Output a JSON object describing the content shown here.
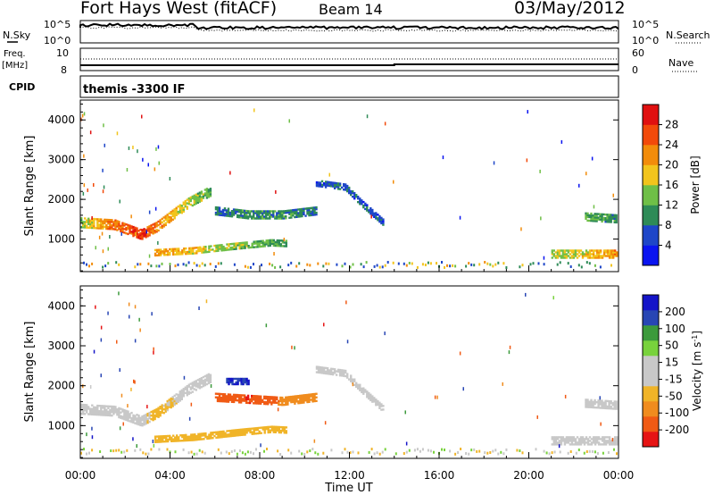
{
  "header": {
    "radar": "Fort Hays West (fitACF)",
    "beam": "Beam 14",
    "date": "03/May/2012"
  },
  "noise_panel": {
    "left_label": "N.Sky",
    "right_label": "N.Search",
    "left_ticks": [
      "10^5",
      "10^0"
    ],
    "right_ticks": [
      "10^5",
      "10^0"
    ]
  },
  "freq_panel": {
    "left_label_line1": "Freq.",
    "left_label_line2": "[MHz]",
    "left_ticks": [
      "10",
      "8"
    ],
    "right_label": "Nave",
    "right_ticks": [
      "60",
      "0"
    ]
  },
  "cpid": {
    "label": "CPID",
    "value": "themis -3300 IF"
  },
  "colors": {
    "power_scale": [
      "#0a14f0",
      "#1e46c8",
      "#2e8b57",
      "#6fbf47",
      "#f2c41c",
      "#f28c0a",
      "#f24a0a",
      "#e01010"
    ],
    "velocity_scale": [
      "#1414c8",
      "#2846b4",
      "#3c9a3c",
      "#78d23c",
      "#c8c8c8",
      "#c8c8c8",
      "#f0b428",
      "#f08c1e",
      "#f05a14",
      "#e61414"
    ]
  },
  "chart_data": [
    {
      "type": "heatmap",
      "name": "power",
      "xlabel": "",
      "ylabel": "Slant Range [km]",
      "colorbar_label": "Power [dB]",
      "colorbar_ticks": [
        "4",
        "8",
        "12",
        "16",
        "20",
        "24",
        "28"
      ],
      "colorbar_range": [
        0,
        32
      ],
      "xlim": [
        0,
        24
      ],
      "ylim": [
        180,
        4500
      ],
      "xticks": [
        "00:00",
        "04:00",
        "08:00",
        "12:00",
        "16:00",
        "20:00",
        "00:00"
      ],
      "yticks": [
        1000,
        2000,
        3000,
        4000
      ],
      "features": [
        {
          "t": [
            0.0,
            1.5,
            2.7,
            3.4,
            4.8,
            5.8
          ],
          "r": [
            1400,
            1350,
            1100,
            1300,
            1900,
            2200
          ],
          "w": 120,
          "v": [
            14,
            24,
            28,
            22,
            16,
            12
          ]
        },
        {
          "t": [
            3.3,
            5.0,
            7.0,
            8.5,
            9.2
          ],
          "r": [
            650,
            700,
            820,
            900,
            880
          ],
          "w": 80,
          "v": [
            20,
            18,
            14,
            12,
            10
          ]
        },
        {
          "t": [
            6.0,
            7.5,
            9.0,
            10.5
          ],
          "r": [
            1700,
            1600,
            1600,
            1700
          ],
          "w": 100,
          "v": [
            8,
            10,
            10,
            8
          ]
        },
        {
          "t": [
            10.5,
            11.8,
            12.5,
            13.5
          ],
          "r": [
            2400,
            2300,
            1900,
            1400
          ],
          "w": 80,
          "v": [
            6,
            8,
            6,
            6
          ]
        },
        {
          "t": [
            21.0,
            23.9
          ],
          "r": [
            600,
            600
          ],
          "w": 90,
          "v": [
            14,
            22
          ]
        },
        {
          "t": [
            22.5,
            23.9
          ],
          "r": [
            1550,
            1500
          ],
          "w": 100,
          "v": [
            12,
            10
          ]
        }
      ]
    },
    {
      "type": "heatmap",
      "name": "velocity",
      "xlabel": "Time UT",
      "ylabel": "Slant Range [km]",
      "colorbar_label": "Velocity [m s^-1]",
      "colorbar_ticks": [
        "-200",
        "-100",
        "-50",
        "-15",
        "15",
        "50",
        "100",
        "200"
      ],
      "xlim": [
        0,
        24
      ],
      "ylim": [
        180,
        4500
      ],
      "xticks": [
        "00:00",
        "04:00",
        "08:00",
        "12:00",
        "16:00",
        "20:00",
        "00:00"
      ],
      "yticks": [
        1000,
        2000,
        3000,
        4000
      ],
      "features": [
        {
          "t": [
            0.0,
            1.5,
            2.7,
            3.4,
            4.8,
            5.8
          ],
          "r": [
            1400,
            1350,
            1100,
            1300,
            1900,
            2200
          ],
          "w": 120,
          "v": [
            0,
            0,
            0,
            -30,
            0,
            0
          ]
        },
        {
          "t": [
            3.3,
            5.0,
            7.0,
            8.5,
            9.2
          ],
          "r": [
            650,
            700,
            820,
            900,
            880
          ],
          "w": 80,
          "v": [
            -40,
            -40,
            -40,
            -40,
            -30
          ]
        },
        {
          "t": [
            6.0,
            7.5,
            9.0,
            10.5
          ],
          "r": [
            1700,
            1650,
            1600,
            1700
          ],
          "w": 100,
          "v": [
            -150,
            -200,
            -80,
            -60
          ]
        },
        {
          "t": [
            6.5,
            7.5
          ],
          "r": [
            2100,
            2100
          ],
          "w": 80,
          "v": [
            200,
            200
          ]
        },
        {
          "t": [
            10.5,
            11.8,
            12.5,
            13.5
          ],
          "r": [
            2400,
            2300,
            1900,
            1400
          ],
          "w": 80,
          "v": [
            0,
            0,
            0,
            0
          ]
        },
        {
          "t": [
            21.0,
            23.9
          ],
          "r": [
            600,
            600
          ],
          "w": 90,
          "v": [
            0,
            0
          ]
        },
        {
          "t": [
            22.5,
            23.9
          ],
          "r": [
            1550,
            1500
          ],
          "w": 100,
          "v": [
            0,
            0
          ]
        }
      ]
    }
  ]
}
